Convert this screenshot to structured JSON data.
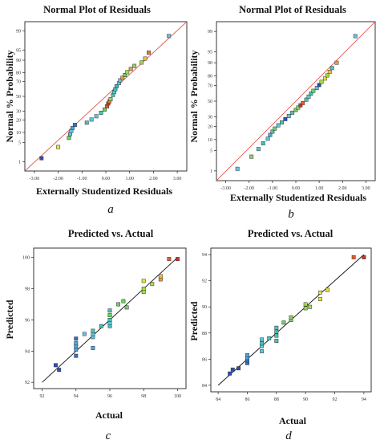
{
  "chart_data": [
    {
      "type": "scatter",
      "panel_letter": "a",
      "title": "Normal Plot of Residuals",
      "xlabel": "Externally Studentized Residuals",
      "ylabel": "Normal % Probability",
      "xlim": [
        -3.4,
        3.4
      ],
      "ylim": [
        0.4,
        99.6
      ],
      "probability_y": true,
      "xticks": [
        "-3.00",
        "-2.00",
        "-1.00",
        "0.00",
        "1.00",
        "2.00",
        "3.00"
      ],
      "xtick_values": [
        -3,
        -2,
        -1,
        0,
        1,
        2,
        3
      ],
      "yticks": [
        "1",
        "5",
        "10",
        "20",
        "30",
        "50",
        "70",
        "80",
        "90",
        "95",
        "99"
      ],
      "ytick_values": [
        1,
        5,
        10,
        20,
        30,
        50,
        70,
        80,
        90,
        95,
        99
      ],
      "reference_line": [
        [
          -3.4,
          0.4
        ],
        [
          3.4,
          99.6
        ]
      ],
      "points": [
        {
          "x": -2.7,
          "y": 1.4,
          "color": "#2b4fb3"
        },
        {
          "x": -2.0,
          "y": 3.6,
          "color": "#e8e23a"
        },
        {
          "x": -1.55,
          "y": 7.0,
          "color": "#6fd060"
        },
        {
          "x": -1.5,
          "y": 9.0,
          "color": "#5ec4e0"
        },
        {
          "x": -1.45,
          "y": 11.0,
          "color": "#5ec4e0"
        },
        {
          "x": -1.4,
          "y": 13.0,
          "color": "#4aa7e0"
        },
        {
          "x": -1.3,
          "y": 15.5,
          "color": "#3370c8"
        },
        {
          "x": -0.8,
          "y": 17.5,
          "color": "#41c6b5"
        },
        {
          "x": -0.6,
          "y": 20.5,
          "color": "#5ec4e0"
        },
        {
          "x": -0.4,
          "y": 24.0,
          "color": "#5ec4e0"
        },
        {
          "x": -0.2,
          "y": 28.0,
          "color": "#41c6b5"
        },
        {
          "x": -0.05,
          "y": 32.0,
          "color": "#6fd060"
        },
        {
          "x": 0.05,
          "y": 36.0,
          "color": "#e85a30"
        },
        {
          "x": 0.1,
          "y": 40.0,
          "color": "#c8332b"
        },
        {
          "x": 0.15,
          "y": 43.0,
          "color": "#e87d30"
        },
        {
          "x": 0.2,
          "y": 46.0,
          "color": "#8fd060"
        },
        {
          "x": 0.3,
          "y": 52.0,
          "color": "#41c6b5"
        },
        {
          "x": 0.35,
          "y": 56.0,
          "color": "#5ec4e0"
        },
        {
          "x": 0.4,
          "y": 60.0,
          "color": "#41c6b5"
        },
        {
          "x": 0.45,
          "y": 64.0,
          "color": "#4aa7e0"
        },
        {
          "x": 0.55,
          "y": 68.0,
          "color": "#5ec4e0"
        },
        {
          "x": 0.6,
          "y": 71.5,
          "color": "#5ec4e0"
        },
        {
          "x": 0.7,
          "y": 74.5,
          "color": "#e8a030"
        },
        {
          "x": 0.8,
          "y": 77.5,
          "color": "#6fd060"
        },
        {
          "x": 0.9,
          "y": 80.5,
          "color": "#a8dc40"
        },
        {
          "x": 1.05,
          "y": 83.5,
          "color": "#e8a030"
        },
        {
          "x": 1.2,
          "y": 86.0,
          "color": "#8fd060"
        },
        {
          "x": 1.5,
          "y": 88.5,
          "color": "#a8dc40"
        },
        {
          "x": 1.65,
          "y": 91.0,
          "color": "#e8c040"
        },
        {
          "x": 1.8,
          "y": 94.0,
          "color": "#e87d30"
        },
        {
          "x": 2.65,
          "y": 98.4,
          "color": "#5ec4e0"
        }
      ]
    },
    {
      "type": "scatter",
      "panel_letter": "b",
      "title": "Normal Plot of Residuals",
      "xlabel": "Externally Studentized Residuals",
      "ylabel": "Normal % Probability",
      "xlim": [
        -3.4,
        3.4
      ],
      "ylim": [
        0.4,
        99.6
      ],
      "probability_y": true,
      "xticks": [
        "-3.00",
        "-2.00",
        "-1.00",
        "0.00",
        "1.00",
        "2.00",
        "3.00"
      ],
      "xtick_values": [
        -3,
        -2,
        -1,
        0,
        1,
        2,
        3
      ],
      "yticks": [
        "1",
        "5",
        "10",
        "20",
        "30",
        "50",
        "70",
        "80",
        "90",
        "95",
        "99"
      ],
      "ytick_values": [
        1,
        5,
        10,
        20,
        30,
        50,
        70,
        80,
        90,
        95,
        99
      ],
      "reference_line": [
        [
          -3.4,
          0.4
        ],
        [
          3.4,
          99.6
        ]
      ],
      "points": [
        {
          "x": -2.5,
          "y": 1.2,
          "color": "#5ec4e0"
        },
        {
          "x": -1.9,
          "y": 3.2,
          "color": "#8fd060"
        },
        {
          "x": -1.6,
          "y": 5.5,
          "color": "#5ec4e0"
        },
        {
          "x": -1.4,
          "y": 8.0,
          "color": "#41c6b5"
        },
        {
          "x": -1.2,
          "y": 10.5,
          "color": "#5ec4e0"
        },
        {
          "x": -1.1,
          "y": 13.0,
          "color": "#4aa7e0"
        },
        {
          "x": -1.0,
          "y": 15.5,
          "color": "#41c6b5"
        },
        {
          "x": -0.9,
          "y": 18.0,
          "color": "#6fd060"
        },
        {
          "x": -0.75,
          "y": 21.0,
          "color": "#5ec4e0"
        },
        {
          "x": -0.6,
          "y": 24.0,
          "color": "#41c6b5"
        },
        {
          "x": -0.45,
          "y": 27.5,
          "color": "#2b4fb3"
        },
        {
          "x": -0.3,
          "y": 31.0,
          "color": "#5ec4e0"
        },
        {
          "x": -0.15,
          "y": 35.0,
          "color": "#41c6b5"
        },
        {
          "x": 0.0,
          "y": 38.5,
          "color": "#6fd060"
        },
        {
          "x": 0.1,
          "y": 41.5,
          "color": "#8fd060"
        },
        {
          "x": 0.2,
          "y": 44.5,
          "color": "#c8332b"
        },
        {
          "x": 0.3,
          "y": 47.5,
          "color": "#e85a30"
        },
        {
          "x": 0.45,
          "y": 52.0,
          "color": "#41c6b5"
        },
        {
          "x": 0.55,
          "y": 56.0,
          "color": "#5ec4e0"
        },
        {
          "x": 0.65,
          "y": 60.0,
          "color": "#41c6b5"
        },
        {
          "x": 0.75,
          "y": 63.5,
          "color": "#6fd060"
        },
        {
          "x": 0.9,
          "y": 67.0,
          "color": "#5ec4e0"
        },
        {
          "x": 1.0,
          "y": 70.5,
          "color": "#2b4fb3"
        },
        {
          "x": 1.1,
          "y": 74.0,
          "color": "#a8dc40"
        },
        {
          "x": 1.25,
          "y": 77.5,
          "color": "#e8e23a"
        },
        {
          "x": 1.35,
          "y": 80.5,
          "color": "#a8dc40"
        },
        {
          "x": 1.45,
          "y": 83.5,
          "color": "#e8c040"
        },
        {
          "x": 1.55,
          "y": 86.5,
          "color": "#41c6b5"
        },
        {
          "x": 1.75,
          "y": 90.0,
          "color": "#e8a030"
        },
        {
          "x": 2.55,
          "y": 98.5,
          "color": "#5ec4e0"
        }
      ]
    },
    {
      "type": "scatter",
      "panel_letter": "c",
      "title": "Predicted vs. Actual",
      "xlabel": "Actual",
      "ylabel": "Predicted",
      "xlim": [
        91.5,
        100.5
      ],
      "ylim": [
        91.6,
        100.6
      ],
      "probability_y": false,
      "xticks": [
        "92",
        "94",
        "96",
        "98",
        "100"
      ],
      "xtick_values": [
        92,
        94,
        96,
        98,
        100
      ],
      "yticks": [
        "92",
        "94",
        "96",
        "98",
        "100"
      ],
      "ytick_values": [
        92,
        94,
        96,
        98,
        100
      ],
      "reference_line": [
        [
          92,
          92
        ],
        [
          100,
          100
        ]
      ],
      "points": [
        {
          "x": 92.8,
          "y": 93.1,
          "color": "#2b4fb3"
        },
        {
          "x": 93.0,
          "y": 92.8,
          "color": "#2b4fb3"
        },
        {
          "x": 94.0,
          "y": 93.7,
          "color": "#3370c8"
        },
        {
          "x": 94.0,
          "y": 94.1,
          "color": "#4aa7e0"
        },
        {
          "x": 94.0,
          "y": 94.3,
          "color": "#4aa7e0"
        },
        {
          "x": 94.0,
          "y": 94.5,
          "color": "#4aa7e0"
        },
        {
          "x": 94.0,
          "y": 94.8,
          "color": "#3370c8"
        },
        {
          "x": 94.5,
          "y": 95.1,
          "color": "#5ec4e0"
        },
        {
          "x": 95.0,
          "y": 94.2,
          "color": "#4aa7e0"
        },
        {
          "x": 95.0,
          "y": 94.9,
          "color": "#5ec4e0"
        },
        {
          "x": 95.0,
          "y": 95.1,
          "color": "#5ec4e0"
        },
        {
          "x": 95.0,
          "y": 95.3,
          "color": "#41c6b5"
        },
        {
          "x": 95.5,
          "y": 95.6,
          "color": "#41c6b5"
        },
        {
          "x": 96.0,
          "y": 95.6,
          "color": "#41c6b5"
        },
        {
          "x": 96.0,
          "y": 95.8,
          "color": "#5ec4e0"
        },
        {
          "x": 96.0,
          "y": 96.0,
          "color": "#41c6b5"
        },
        {
          "x": 96.0,
          "y": 96.3,
          "color": "#6fd060"
        },
        {
          "x": 96.0,
          "y": 96.6,
          "color": "#41c6b5"
        },
        {
          "x": 96.5,
          "y": 97.0,
          "color": "#6fd060"
        },
        {
          "x": 96.8,
          "y": 97.2,
          "color": "#6fd060"
        },
        {
          "x": 97.0,
          "y": 96.8,
          "color": "#6fd060"
        },
        {
          "x": 98.0,
          "y": 97.8,
          "color": "#a8dc40"
        },
        {
          "x": 98.0,
          "y": 98.0,
          "color": "#a8dc40"
        },
        {
          "x": 98.0,
          "y": 98.5,
          "color": "#e8e23a"
        },
        {
          "x": 98.5,
          "y": 98.3,
          "color": "#a8dc40"
        },
        {
          "x": 99.0,
          "y": 98.6,
          "color": "#e8a030"
        },
        {
          "x": 99.0,
          "y": 98.8,
          "color": "#e8c040"
        },
        {
          "x": 99.5,
          "y": 99.9,
          "color": "#e85a30"
        },
        {
          "x": 100.0,
          "y": 99.9,
          "color": "#c8332b"
        }
      ]
    },
    {
      "type": "scatter",
      "panel_letter": "d",
      "title": "Predicted vs. Actual",
      "xlabel": "Actual",
      "ylabel": "Predicted",
      "xlim": [
        83.5,
        94.5
      ],
      "ylim": [
        83.5,
        94.5
      ],
      "probability_y": false,
      "xticks": [
        "84",
        "86",
        "88",
        "90",
        "92",
        "94"
      ],
      "xtick_values": [
        84,
        86,
        88,
        90,
        92,
        94
      ],
      "yticks": [
        "84",
        "86",
        "88",
        "90",
        "92",
        "94"
      ],
      "ytick_values": [
        84,
        86,
        88,
        90,
        92,
        94
      ],
      "reference_line": [
        [
          84,
          84
        ],
        [
          94,
          94
        ]
      ],
      "points": [
        {
          "x": 84.8,
          "y": 84.9,
          "color": "#2b4fb3"
        },
        {
          "x": 85.0,
          "y": 85.2,
          "color": "#2b4fb3"
        },
        {
          "x": 85.4,
          "y": 85.3,
          "color": "#2b4fb3"
        },
        {
          "x": 86.0,
          "y": 85.7,
          "color": "#3370c8"
        },
        {
          "x": 86.0,
          "y": 85.9,
          "color": "#3370c8"
        },
        {
          "x": 86.0,
          "y": 86.1,
          "color": "#4aa7e0"
        },
        {
          "x": 86.0,
          "y": 86.3,
          "color": "#4aa7e0"
        },
        {
          "x": 87.0,
          "y": 86.6,
          "color": "#5ec4e0"
        },
        {
          "x": 87.0,
          "y": 87.0,
          "color": "#5ec4e0"
        },
        {
          "x": 87.0,
          "y": 87.2,
          "color": "#41c6b5"
        },
        {
          "x": 87.0,
          "y": 87.5,
          "color": "#5ec4e0"
        },
        {
          "x": 87.5,
          "y": 87.6,
          "color": "#41c6b5"
        },
        {
          "x": 88.0,
          "y": 87.4,
          "color": "#41c6b5"
        },
        {
          "x": 88.0,
          "y": 87.8,
          "color": "#41c6b5"
        },
        {
          "x": 88.0,
          "y": 88.1,
          "color": "#41c6b5"
        },
        {
          "x": 88.0,
          "y": 88.4,
          "color": "#41c6b5"
        },
        {
          "x": 88.5,
          "y": 88.8,
          "color": "#6fd060"
        },
        {
          "x": 89.0,
          "y": 89.0,
          "color": "#6fd060"
        },
        {
          "x": 89.0,
          "y": 89.2,
          "color": "#8fd060"
        },
        {
          "x": 90.0,
          "y": 89.9,
          "color": "#8fd060"
        },
        {
          "x": 90.0,
          "y": 90.2,
          "color": "#a8dc40"
        },
        {
          "x": 90.3,
          "y": 90.0,
          "color": "#a8dc40"
        },
        {
          "x": 91.0,
          "y": 90.6,
          "color": "#e8e23a"
        },
        {
          "x": 91.0,
          "y": 91.1,
          "color": "#e8e23a"
        },
        {
          "x": 91.5,
          "y": 91.3,
          "color": "#e8e23a"
        },
        {
          "x": 93.3,
          "y": 93.8,
          "color": "#e85a30"
        },
        {
          "x": 94.0,
          "y": 93.8,
          "color": "#c8332b"
        }
      ]
    }
  ]
}
